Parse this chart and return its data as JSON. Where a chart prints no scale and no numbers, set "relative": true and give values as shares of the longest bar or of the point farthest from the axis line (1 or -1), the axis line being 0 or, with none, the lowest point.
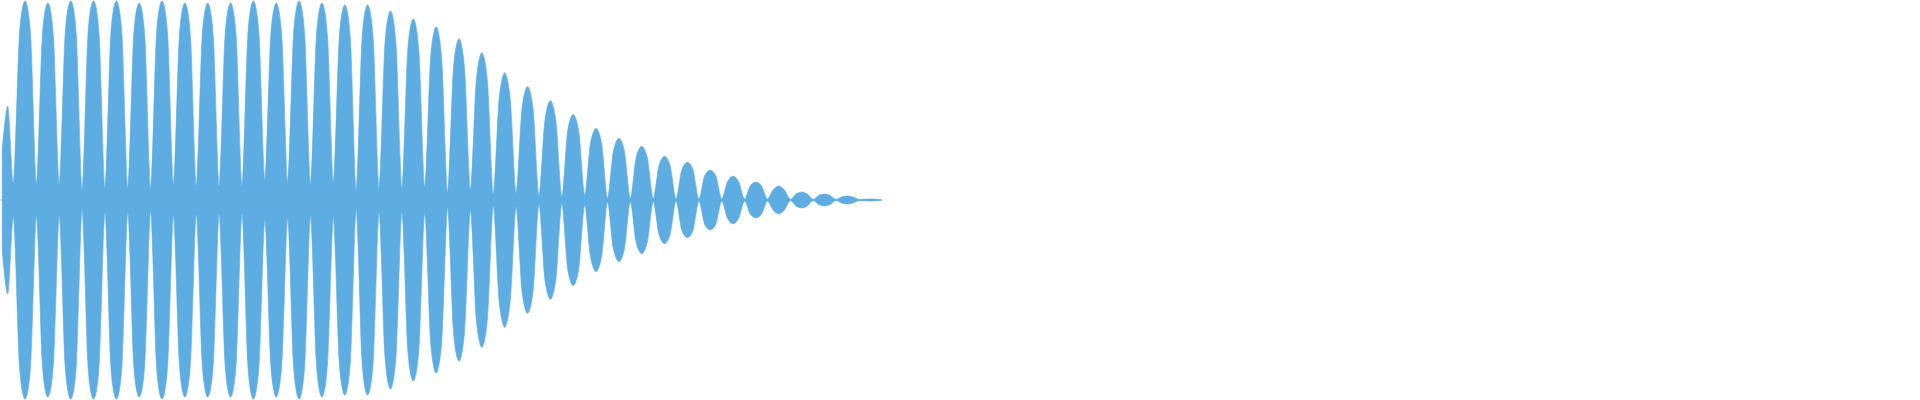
{
  "chart_data": {
    "type": "area",
    "relative": true,
    "categories": [
      null,
      null,
      null,
      null,
      null,
      null,
      null,
      null,
      null,
      null,
      null,
      null,
      null,
      null,
      null,
      null,
      null,
      null,
      null,
      null,
      null,
      null,
      null,
      null,
      null,
      null,
      null,
      null,
      null,
      null,
      null,
      null,
      null,
      null,
      null,
      null,
      null,
      null,
      null,
      null,
      null,
      null,
      null,
      null,
      null,
      null,
      null,
      null,
      null,
      null,
      null,
      null,
      null,
      null,
      null,
      null,
      null,
      null,
      null,
      null,
      null,
      null,
      null,
      null,
      null,
      null,
      null,
      null,
      null,
      null,
      null,
      null,
      null,
      null,
      null,
      null,
      null,
      null,
      null,
      null,
      null,
      null,
      null,
      null,
      null,
      null,
      null,
      null,
      null,
      null,
      null,
      null,
      null,
      null,
      null,
      null,
      null,
      null,
      null,
      null,
      null,
      null,
      null,
      null,
      null,
      null,
      null,
      null,
      null,
      null,
      null,
      null,
      null,
      null,
      null,
      null,
      null,
      null,
      null,
      null,
      null,
      null,
      null,
      null,
      null,
      null,
      null,
      null,
      null,
      null,
      null,
      null,
      null,
      null,
      null,
      null,
      null,
      null,
      null,
      null,
      null,
      null,
      null,
      null,
      null,
      null,
      null,
      null,
      null,
      null,
      null,
      null,
      null,
      null,
      null
    ],
    "series": [
      {
        "color": "#5dade2",
        "values": [
          0.25,
          0.47,
          0.09,
          0.82,
          1.0,
          0.82,
          0.08,
          0.81,
          0.99,
          0.81,
          0.08,
          0.82,
          1.0,
          0.82,
          0.05,
          0.82,
          1.0,
          0.82,
          0.06,
          0.82,
          1.0,
          0.82,
          0.06,
          0.81,
          0.99,
          0.81,
          0.055,
          0.82,
          1.0,
          0.82,
          0.08,
          0.81,
          0.99,
          0.81,
          0.07,
          0.81,
          0.99,
          0.81,
          0.07,
          0.81,
          0.99,
          0.81,
          0.07,
          0.82,
          1.0,
          0.82,
          0.1,
          0.81,
          0.99,
          0.81,
          0.09,
          0.82,
          1.0,
          0.82,
          0.08,
          0.81,
          0.99,
          0.81,
          0.09,
          0.8,
          0.98,
          0.8,
          0.05,
          0.8,
          0.98,
          0.8,
          0.06,
          0.77,
          0.95,
          0.77,
          0.06,
          0.74,
          0.91,
          0.74,
          0.065,
          0.7,
          0.87,
          0.7,
          0.04,
          0.65,
          0.81,
          0.65,
          0.05,
          0.59,
          0.74,
          0.59,
          0.03,
          0.5,
          0.64,
          0.5,
          0.035,
          0.45,
          0.57,
          0.45,
          0.02,
          0.39,
          0.5,
          0.39,
          0.017,
          0.34,
          0.43,
          0.34,
          0.025,
          0.28,
          0.36,
          0.28,
          0.01,
          0.24,
          0.31,
          0.24,
          0.008,
          0.21,
          0.27,
          0.21,
          0.008,
          0.17,
          0.22,
          0.17,
          0.005,
          0.15,
          0.19,
          0.15,
          0.005,
          0.12,
          0.15,
          0.12,
          0.005,
          0.09,
          0.12,
          0.09,
          0.005,
          0.07,
          0.09,
          0.07,
          0.005,
          0.05,
          0.07,
          0.05,
          0.003,
          0.03,
          0.04,
          0.03,
          0.003,
          0.023,
          0.03,
          0.023,
          0.003,
          0.015,
          0.02,
          0.015,
          0.003,
          0.004,
          0.005,
          0.004,
          0
        ]
      },
      {
        "color": "#5dade2",
        "values": [
          -0.25,
          -0.47,
          -0.09,
          -0.82,
          -1.0,
          -0.82,
          -0.08,
          -0.81,
          -0.99,
          -0.81,
          -0.08,
          -0.82,
          -1.0,
          -0.82,
          -0.05,
          -0.82,
          -1.0,
          -0.82,
          -0.06,
          -0.82,
          -1.0,
          -0.82,
          -0.06,
          -0.81,
          -0.99,
          -0.81,
          -0.055,
          -0.82,
          -1.0,
          -0.82,
          -0.08,
          -0.81,
          -0.99,
          -0.81,
          -0.07,
          -0.81,
          -0.99,
          -0.81,
          -0.07,
          -0.81,
          -0.99,
          -0.81,
          -0.07,
          -0.82,
          -1.0,
          -0.82,
          -0.1,
          -0.81,
          -0.99,
          -0.81,
          -0.09,
          -0.82,
          -1.0,
          -0.82,
          -0.08,
          -0.81,
          -0.99,
          -0.81,
          -0.09,
          -0.8,
          -0.98,
          -0.8,
          -0.05,
          -0.8,
          -0.98,
          -0.8,
          -0.06,
          -0.77,
          -0.95,
          -0.77,
          -0.06,
          -0.74,
          -0.91,
          -0.74,
          -0.065,
          -0.7,
          -0.87,
          -0.7,
          -0.04,
          -0.65,
          -0.81,
          -0.65,
          -0.05,
          -0.59,
          -0.74,
          -0.59,
          -0.03,
          -0.5,
          -0.64,
          -0.5,
          -0.035,
          -0.45,
          -0.57,
          -0.45,
          -0.02,
          -0.39,
          -0.5,
          -0.39,
          -0.017,
          -0.34,
          -0.43,
          -0.34,
          -0.025,
          -0.28,
          -0.36,
          -0.28,
          -0.01,
          -0.24,
          -0.31,
          -0.24,
          -0.008,
          -0.21,
          -0.27,
          -0.21,
          -0.008,
          -0.17,
          -0.22,
          -0.17,
          -0.005,
          -0.15,
          -0.19,
          -0.15,
          -0.005,
          -0.12,
          -0.15,
          -0.12,
          -0.005,
          -0.09,
          -0.12,
          -0.09,
          -0.005,
          -0.07,
          -0.09,
          -0.07,
          -0.005,
          -0.05,
          -0.07,
          -0.05,
          -0.003,
          -0.03,
          -0.04,
          -0.03,
          -0.003,
          -0.023,
          -0.03,
          -0.023,
          -0.003,
          -0.015,
          -0.02,
          -0.015,
          -0.003,
          -0.004,
          -0.005,
          -0.004,
          0
        ]
      }
    ]
  }
}
